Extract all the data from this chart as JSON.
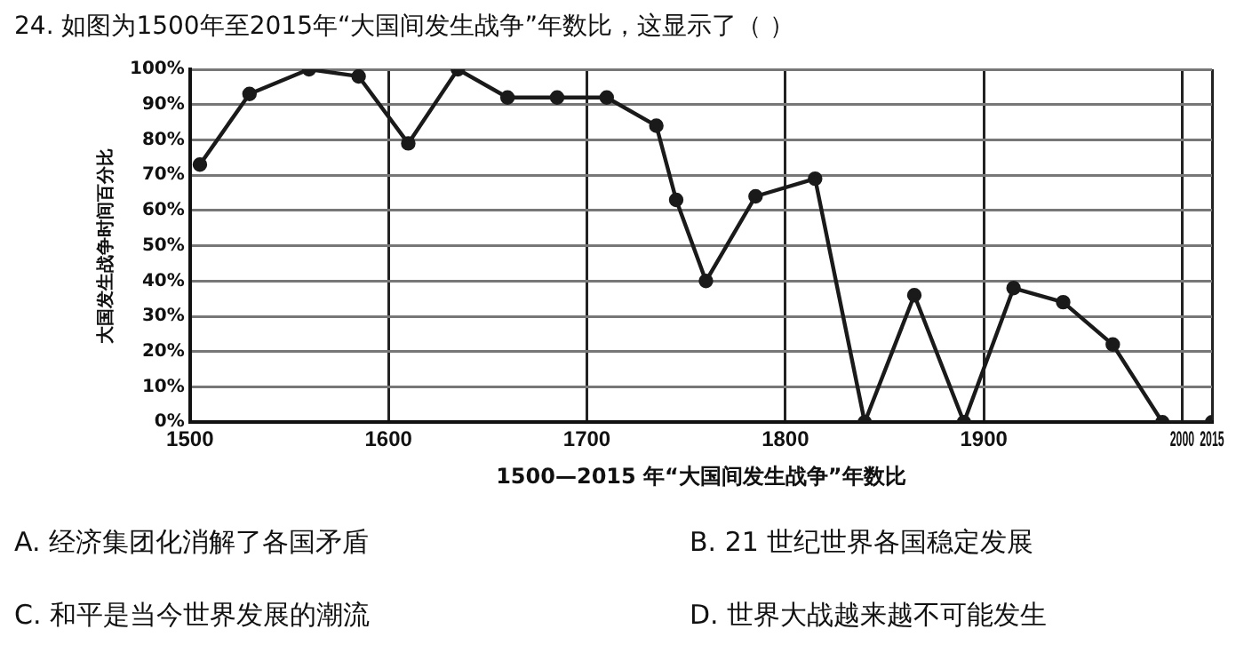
{
  "chart_data": {
    "type": "line",
    "title": "24. 如图为1500年至2015年“大国间发生战争”年数比，这显示了（  ）",
    "xlabel": "1500—2015 年“大国间发生战争”年数比",
    "ylabel": "大国发生战争时间百分比",
    "x": [
      1505,
      1530,
      1560,
      1585,
      1610,
      1635,
      1660,
      1685,
      1710,
      1735,
      1745,
      1760,
      1785,
      1815,
      1840,
      1865,
      1890,
      1915,
      1940,
      1965,
      1990,
      2015
    ],
    "series": [
      {
        "color": "#1a1a1a",
        "values": [
          73,
          93,
          100,
          98,
          79,
          100,
          92,
          92,
          92,
          84,
          63,
          40,
          64,
          69,
          0,
          36,
          0,
          38,
          34,
          22,
          0,
          0
        ]
      }
    ],
    "xlim": [
      1500,
      2015
    ],
    "xticks": [
      1500,
      1600,
      1700,
      1800,
      1900,
      2000,
      2015
    ],
    "ylim": [
      0,
      100
    ],
    "yticks": [
      {
        "value": 0,
        "label": "0%"
      },
      {
        "value": 10,
        "label": "10%"
      },
      {
        "value": 20,
        "label": "20%"
      },
      {
        "value": 30,
        "label": "30%"
      },
      {
        "value": 40,
        "label": "40%"
      },
      {
        "value": 50,
        "label": "50%"
      },
      {
        "value": 60,
        "label": "60%"
      },
      {
        "value": 70,
        "label": "70%"
      },
      {
        "value": 80,
        "label": "80%"
      },
      {
        "value": 90,
        "label": "90%"
      },
      {
        "value": 100,
        "label": "100%"
      }
    ],
    "grid": true,
    "marker": "circle",
    "line_style": "solid",
    "legend": false,
    "annotations": [
      "A. 经济集团化消解了各国矛盾",
      "B. 21 世纪世界各国稳定发展",
      "C. 和平是当今世界发展的潮流",
      "D. 世界大战越来越不可能发生"
    ]
  }
}
